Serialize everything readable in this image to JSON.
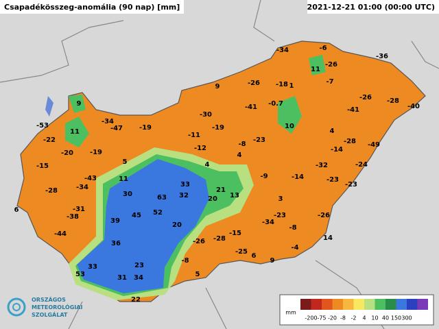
{
  "header": {
    "title": "Csapadékösszeg-anomália (90 nap) [mm]",
    "timestamp": "2021-12-21 01:00 (00:00 UTC)"
  },
  "stations": {
    "values": [
      9,
      -53,
      -34,
      -47,
      -19,
      11,
      -22,
      -20,
      -19,
      -15,
      5,
      -43,
      11,
      -28,
      -34,
      30,
      63,
      33,
      32,
      21,
      20,
      13,
      -31,
      -38,
      6,
      39,
      45,
      52,
      -44,
      36,
      20,
      -26,
      -28,
      -15,
      33,
      23,
      53,
      31,
      34,
      5,
      -8,
      22,
      -25,
      6,
      9,
      -4,
      14,
      -34,
      -23,
      -8,
      -26,
      3,
      -9,
      -14,
      -23,
      -23,
      -32,
      -24,
      -14,
      -28,
      -49,
      4,
      10,
      -23,
      -8,
      4,
      4,
      -12,
      -11,
      -19,
      -30,
      9,
      -26,
      -41,
      -0.7,
      -18,
      1,
      -34,
      -6,
      11,
      -26,
      -7,
      -36,
      -26,
      -28,
      -40,
      -41
    ]
  },
  "legend": {
    "unit": "mm",
    "ticks": [
      -200,
      -75,
      -20,
      -8,
      -2,
      4,
      10,
      40,
      150,
      300
    ],
    "colors": [
      "#7a1a1a",
      "#c0281e",
      "#e0561e",
      "#ee8a22",
      "#f6b640",
      "#f8e860",
      "#b8e080",
      "#4cc060",
      "#2a8c4a",
      "#3a78e0",
      "#2a40c0",
      "#7a3ab8"
    ]
  },
  "logo": {
    "line1": "ORSZÁGOS",
    "line2": "METEOROLÓGIAI",
    "line3": "SZOLGÁLAT"
  }
}
